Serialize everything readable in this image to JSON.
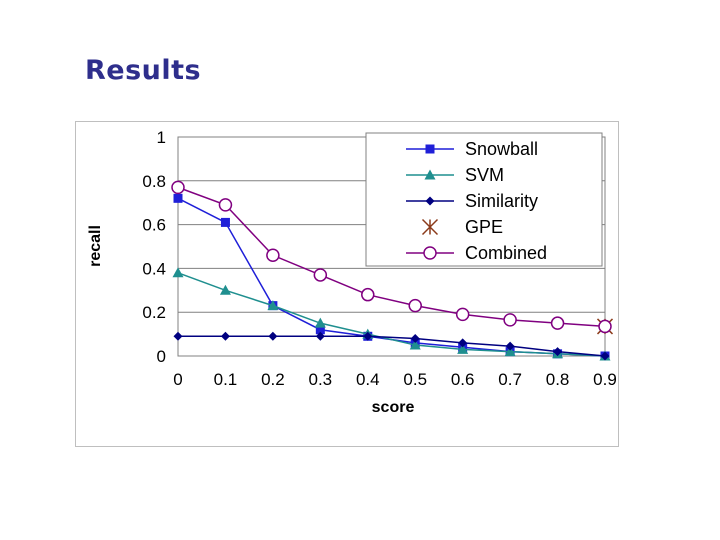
{
  "slide": {
    "title": "Results"
  },
  "chart_data": {
    "type": "line",
    "title": "",
    "xlabel": "score",
    "ylabel": "recall",
    "x": [
      0,
      0.1,
      0.2,
      0.3,
      0.4,
      0.5,
      0.6,
      0.7,
      0.8,
      0.9
    ],
    "x_tick_labels": [
      "0",
      "0.1",
      "0.2",
      "0.3",
      "0.4",
      "0.5",
      "0.6",
      "0.7",
      "0.8",
      "0.9"
    ],
    "y_tick_labels": [
      "0",
      "0.2",
      "0.4",
      "0.6",
      "0.8",
      "1"
    ],
    "xlim": [
      0,
      0.9
    ],
    "ylim": [
      0,
      1
    ],
    "legend_position": "top-right",
    "gridlines": "horizontal",
    "series": [
      {
        "name": "Snowball",
        "marker": "square",
        "color": "#1f1fd8",
        "values": [
          0.72,
          0.61,
          0.23,
          0.12,
          0.09,
          0.06,
          0.04,
          0.02,
          0.01,
          0.0
        ]
      },
      {
        "name": "SVM",
        "marker": "triangle",
        "color": "#1f8f8f",
        "values": [
          0.38,
          0.3,
          0.23,
          0.15,
          0.1,
          0.05,
          0.03,
          0.02,
          0.01,
          0.0
        ]
      },
      {
        "name": "Similarity",
        "marker": "diamond",
        "color": "#000080",
        "values": [
          0.09,
          0.09,
          0.09,
          0.09,
          0.09,
          0.08,
          0.06,
          0.045,
          0.02,
          0.0
        ]
      },
      {
        "name": "GPE",
        "marker": "asterisk",
        "color": "#8b3a1a",
        "values": [
          null,
          null,
          null,
          null,
          null,
          null,
          null,
          null,
          null,
          0.135
        ]
      },
      {
        "name": "Combined",
        "marker": "circle",
        "color": "#800080",
        "values": [
          0.77,
          0.69,
          0.46,
          0.37,
          0.28,
          0.23,
          0.19,
          0.165,
          0.15,
          0.135
        ]
      }
    ]
  }
}
